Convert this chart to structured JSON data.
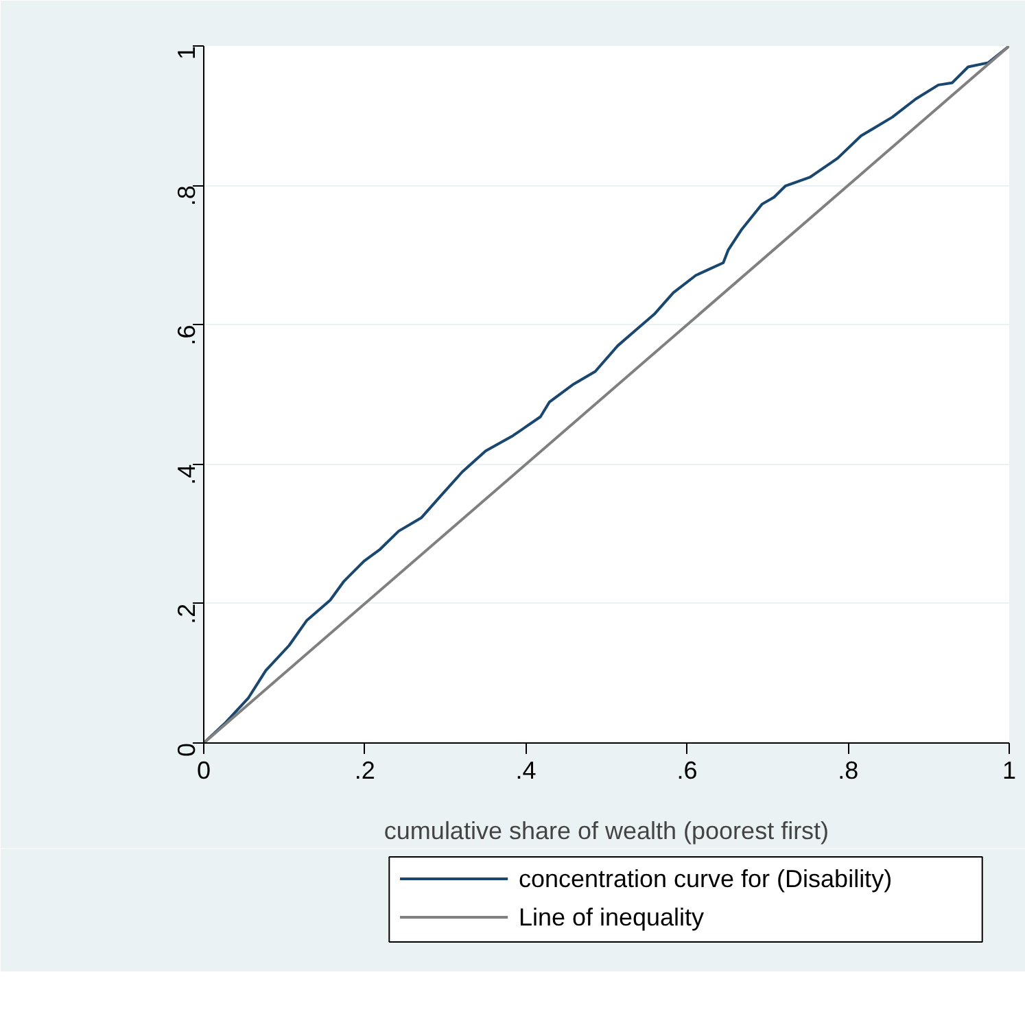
{
  "chart_data": {
    "type": "line",
    "xlabel": "cumulative share of wealth (poorest first)",
    "xlim": [
      0,
      1
    ],
    "ylim": [
      0,
      1
    ],
    "xticks": [
      {
        "value": 0,
        "label": "0"
      },
      {
        "value": 0.2,
        "label": ".2"
      },
      {
        "value": 0.4,
        "label": ".4"
      },
      {
        "value": 0.6,
        "label": ".6"
      },
      {
        "value": 0.8,
        "label": ".8"
      },
      {
        "value": 1,
        "label": "1"
      }
    ],
    "yticks": [
      {
        "value": 0,
        "label": "0"
      },
      {
        "value": 0.2,
        "label": ".2"
      },
      {
        "value": 0.4,
        "label": ".4"
      },
      {
        "value": 0.6,
        "label": ".6"
      },
      {
        "value": 0.8,
        "label": ".8"
      },
      {
        "value": 1,
        "label": "1"
      }
    ],
    "grid": "y",
    "legend": "bottom",
    "line_style": "solid",
    "marker": "none",
    "series": [
      {
        "name": "concentration curve for (Disability)",
        "color": "#1a476f",
        "x": [
          0,
          0.026,
          0.055,
          0.077,
          0.106,
          0.128,
          0.157,
          0.174,
          0.199,
          0.219,
          0.242,
          0.27,
          0.293,
          0.321,
          0.35,
          0.384,
          0.418,
          0.429,
          0.458,
          0.486,
          0.514,
          0.537,
          0.56,
          0.583,
          0.611,
          0.628,
          0.645,
          0.651,
          0.668,
          0.693,
          0.708,
          0.722,
          0.753,
          0.787,
          0.816,
          0.855,
          0.884,
          0.912,
          0.929,
          0.949,
          0.974,
          1
        ],
        "values": [
          0,
          0.028,
          0.064,
          0.104,
          0.14,
          0.176,
          0.205,
          0.232,
          0.261,
          0.278,
          0.304,
          0.323,
          0.353,
          0.389,
          0.419,
          0.441,
          0.468,
          0.489,
          0.514,
          0.533,
          0.57,
          0.593,
          0.616,
          0.646,
          0.671,
          0.68,
          0.689,
          0.707,
          0.737,
          0.773,
          0.783,
          0.799,
          0.812,
          0.839,
          0.871,
          0.898,
          0.924,
          0.944,
          0.947,
          0.97,
          0.976,
          1
        ]
      },
      {
        "name": "Line of inequality",
        "color": "#808080",
        "x": [
          0,
          1
        ],
        "values": [
          0,
          1
        ]
      }
    ]
  }
}
